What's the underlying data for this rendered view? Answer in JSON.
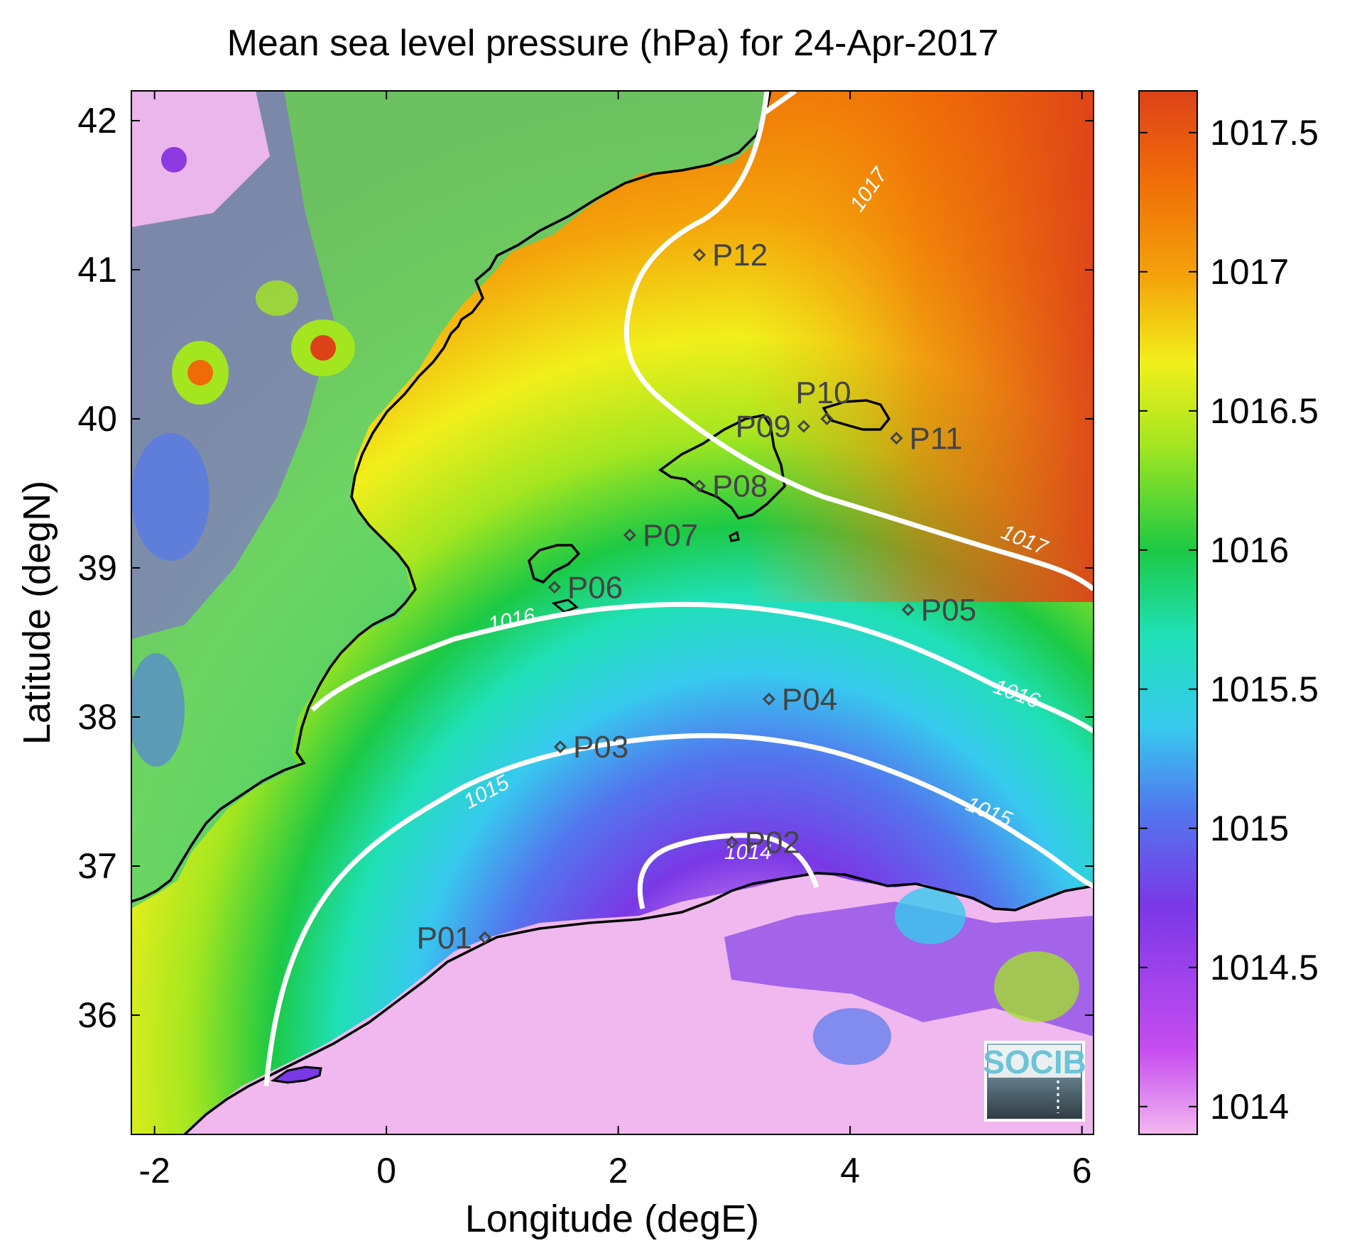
{
  "title": "Mean sea level pressure (hPa) for 24-Apr-2017",
  "x_axis": {
    "label": "Longitude (degE)",
    "ticks": [
      -2,
      0,
      2,
      4,
      6
    ],
    "tick_labels": [
      "-2",
      "0",
      "2",
      "4",
      "6"
    ],
    "range": [
      -2.2,
      6.1
    ]
  },
  "y_axis": {
    "label": "Latitude (degN)",
    "ticks": [
      36,
      37,
      38,
      39,
      40,
      41,
      42
    ],
    "tick_labels": [
      "36",
      "37",
      "38",
      "39",
      "40",
      "41",
      "42"
    ],
    "range": [
      35.2,
      42.2
    ]
  },
  "colorbar": {
    "range": [
      1013.9,
      1017.65
    ],
    "ticks": [
      1014,
      1014.5,
      1015,
      1015.5,
      1016,
      1016.5,
      1017,
      1017.5
    ],
    "tick_labels": [
      "1014",
      "1014.5",
      "1015",
      "1015.5",
      "1016",
      "1016.5",
      "1017",
      "1017.5"
    ],
    "colors": [
      "#f2b8f0",
      "#c64df0",
      "#7a38e6",
      "#5277ee",
      "#37c9ee",
      "#1fe0b5",
      "#1cc944",
      "#a3e620",
      "#f1ef1b",
      "#f4a40a",
      "#ef6a08",
      "#dd4219"
    ]
  },
  "contours": [
    {
      "level": "1014",
      "label": "1014"
    },
    {
      "level": "1015",
      "label": "1015"
    },
    {
      "level": "1016",
      "label": "1016"
    },
    {
      "level": "1017",
      "label": "1017"
    }
  ],
  "stations": [
    {
      "name": "P01",
      "lon": 0.85,
      "lat": 36.52
    },
    {
      "name": "P02",
      "lon": 2.98,
      "lat": 37.16
    },
    {
      "name": "P03",
      "lon": 1.5,
      "lat": 37.8
    },
    {
      "name": "P04",
      "lon": 3.3,
      "lat": 38.12
    },
    {
      "name": "P05",
      "lon": 4.5,
      "lat": 38.72
    },
    {
      "name": "P06",
      "lon": 1.45,
      "lat": 38.87
    },
    {
      "name": "P07",
      "lon": 2.1,
      "lat": 39.22
    },
    {
      "name": "P08",
      "lon": 2.7,
      "lat": 39.55
    },
    {
      "name": "P09",
      "lon": 3.6,
      "lat": 39.95
    },
    {
      "name": "P10",
      "lon": 3.8,
      "lat": 40.0
    },
    {
      "name": "P11",
      "lon": 4.4,
      "lat": 39.87
    },
    {
      "name": "P12",
      "lon": 2.7,
      "lat": 41.1
    }
  ],
  "logo": {
    "text": "SOCIB"
  }
}
